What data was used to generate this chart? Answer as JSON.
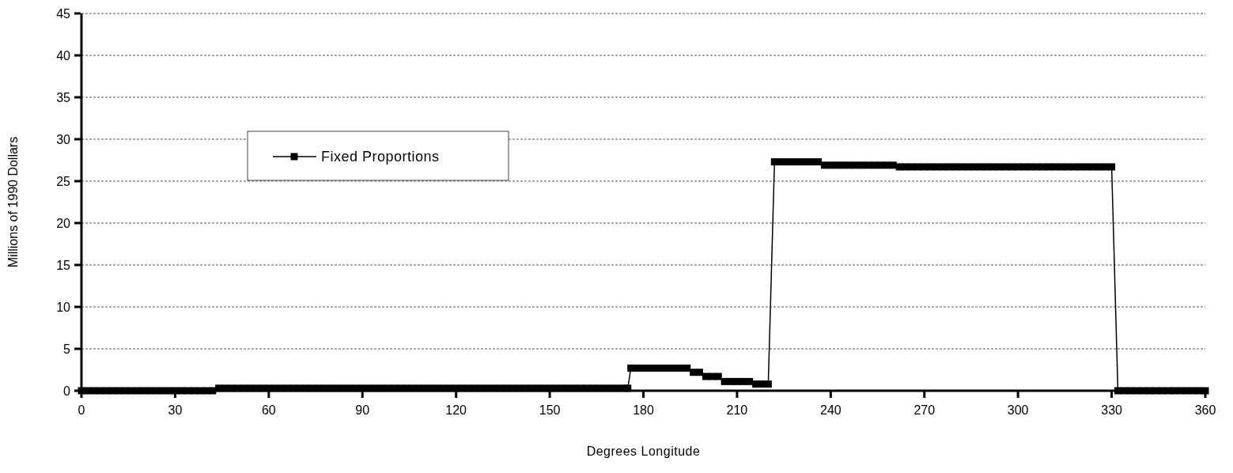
{
  "chart_data": {
    "type": "line",
    "xlabel": "Degrees Longitude",
    "ylabel": "Millions of 1990 Dollars",
    "xlim": [
      0,
      360
    ],
    "xticks": [
      0,
      30,
      60,
      90,
      120,
      150,
      180,
      210,
      240,
      270,
      300,
      330,
      360
    ],
    "ylim": [
      0,
      45
    ],
    "yticks": [
      0,
      5,
      10,
      15,
      20,
      25,
      30,
      35,
      40,
      45
    ],
    "grid": "y",
    "legend": "top left",
    "marker": "square",
    "line_style": "solid",
    "series": [
      {
        "name": "Fixed Proportions",
        "color": "#000000",
        "x": [
          0,
          2,
          4,
          6,
          8,
          10,
          12,
          14,
          16,
          18,
          20,
          22,
          24,
          26,
          28,
          30,
          32,
          34,
          36,
          38,
          40,
          42,
          44,
          46,
          48,
          50,
          52,
          54,
          56,
          58,
          60,
          62,
          64,
          66,
          68,
          70,
          72,
          74,
          76,
          78,
          80,
          82,
          84,
          86,
          88,
          90,
          92,
          94,
          96,
          98,
          100,
          102,
          104,
          106,
          108,
          110,
          112,
          114,
          116,
          118,
          120,
          122,
          124,
          126,
          128,
          130,
          132,
          134,
          136,
          138,
          140,
          142,
          144,
          146,
          148,
          150,
          152,
          154,
          156,
          158,
          160,
          162,
          164,
          166,
          168,
          170,
          172,
          174,
          175,
          176,
          178,
          180,
          182,
          184,
          186,
          188,
          190,
          192,
          194,
          196,
          198,
          200,
          202,
          204,
          206,
          208,
          210,
          212,
          214,
          216,
          218,
          220,
          222,
          224,
          226,
          228,
          230,
          232,
          234,
          236,
          238,
          240,
          242,
          244,
          246,
          248,
          250,
          252,
          254,
          256,
          258,
          260,
          262,
          264,
          266,
          268,
          270,
          272,
          274,
          276,
          278,
          280,
          282,
          284,
          286,
          288,
          290,
          292,
          294,
          296,
          298,
          300,
          302,
          304,
          306,
          308,
          310,
          312,
          314,
          316,
          318,
          320,
          322,
          324,
          326,
          328,
          330,
          332,
          334,
          336,
          338,
          340,
          342,
          344,
          346,
          348,
          350,
          352,
          354,
          356,
          358,
          360
        ],
        "values": [
          0,
          0,
          0,
          0,
          0,
          0,
          0,
          0,
          0,
          0,
          0,
          0,
          0,
          0,
          0,
          0,
          0,
          0,
          0,
          0,
          0,
          0,
          0.3,
          0.3,
          0.3,
          0.3,
          0.3,
          0.3,
          0.3,
          0.3,
          0.3,
          0.3,
          0.3,
          0.3,
          0.3,
          0.3,
          0.3,
          0.3,
          0.3,
          0.3,
          0.3,
          0.3,
          0.3,
          0.3,
          0.3,
          0.3,
          0.3,
          0.3,
          0.3,
          0.3,
          0.3,
          0.3,
          0.3,
          0.3,
          0.3,
          0.3,
          0.3,
          0.3,
          0.3,
          0.3,
          0.3,
          0.3,
          0.3,
          0.3,
          0.3,
          0.3,
          0.3,
          0.3,
          0.3,
          0.3,
          0.3,
          0.3,
          0.3,
          0.3,
          0.3,
          0.3,
          0.3,
          0.3,
          0.3,
          0.3,
          0.3,
          0.3,
          0.3,
          0.3,
          0.3,
          0.3,
          0.3,
          0.3,
          0.3,
          2.7,
          2.7,
          2.7,
          2.7,
          2.7,
          2.7,
          2.7,
          2.7,
          2.7,
          2.7,
          2.2,
          2.2,
          1.7,
          1.7,
          1.7,
          1.1,
          1.1,
          1.1,
          1.1,
          1.1,
          0.8,
          0.8,
          0.8,
          27.3,
          27.3,
          27.3,
          27.3,
          27.3,
          27.3,
          27.3,
          27.3,
          26.9,
          26.9,
          26.9,
          26.9,
          26.9,
          26.9,
          26.9,
          26.9,
          26.9,
          26.9,
          26.9,
          26.9,
          26.7,
          26.7,
          26.7,
          26.7,
          26.7,
          26.7,
          26.7,
          26.7,
          26.7,
          26.7,
          26.7,
          26.7,
          26.7,
          26.7,
          26.7,
          26.7,
          26.7,
          26.7,
          26.7,
          26.7,
          26.7,
          26.7,
          26.7,
          26.7,
          26.7,
          26.7,
          26.7,
          26.7,
          26.7,
          26.7,
          26.7,
          26.7,
          26.7,
          26.7,
          26.7,
          0,
          0,
          0,
          0,
          0,
          0,
          0,
          0,
          0,
          0,
          0,
          0,
          0,
          0,
          0
        ]
      }
    ]
  }
}
